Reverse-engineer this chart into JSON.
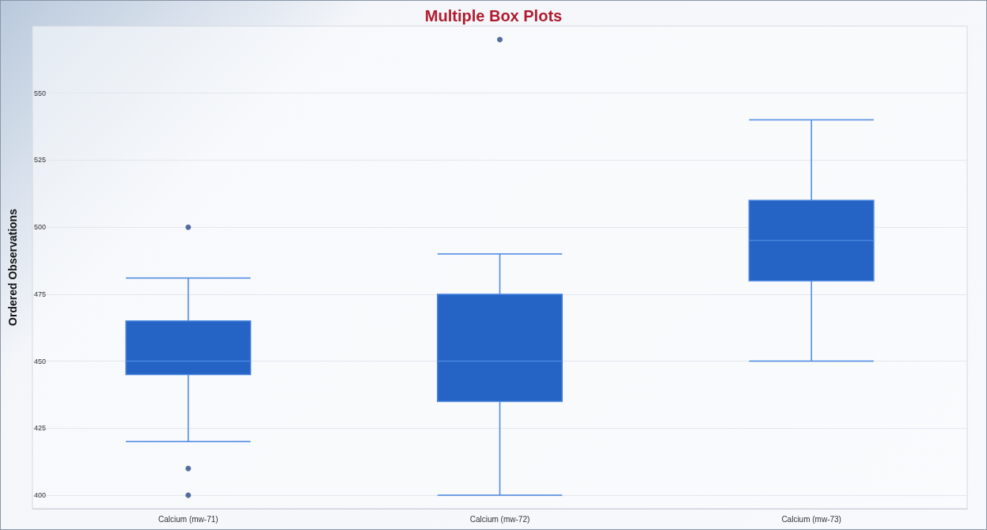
{
  "chart_data": {
    "type": "box",
    "title": "Multiple Box Plots",
    "ylabel": "Ordered Observations",
    "categories": [
      "Calcium (mw-71)",
      "Calcium (mw-72)",
      "Calcium (mw-73)"
    ],
    "boxes": [
      {
        "low": 420,
        "q1": 445,
        "median": 450,
        "q3": 465,
        "high": 481,
        "outliers": [
          500,
          410,
          400
        ]
      },
      {
        "low": 400,
        "q1": 435,
        "median": 450,
        "q3": 475,
        "high": 490,
        "outliers": [
          570
        ]
      },
      {
        "low": 450,
        "q1": 480,
        "median": 495,
        "q3": 510,
        "high": 540
      }
    ],
    "color": "#2563c4",
    "ylim": [
      395,
      575
    ],
    "yticks": [
      400,
      425,
      450,
      475,
      500,
      525,
      550
    ],
    "grid": "y"
  }
}
